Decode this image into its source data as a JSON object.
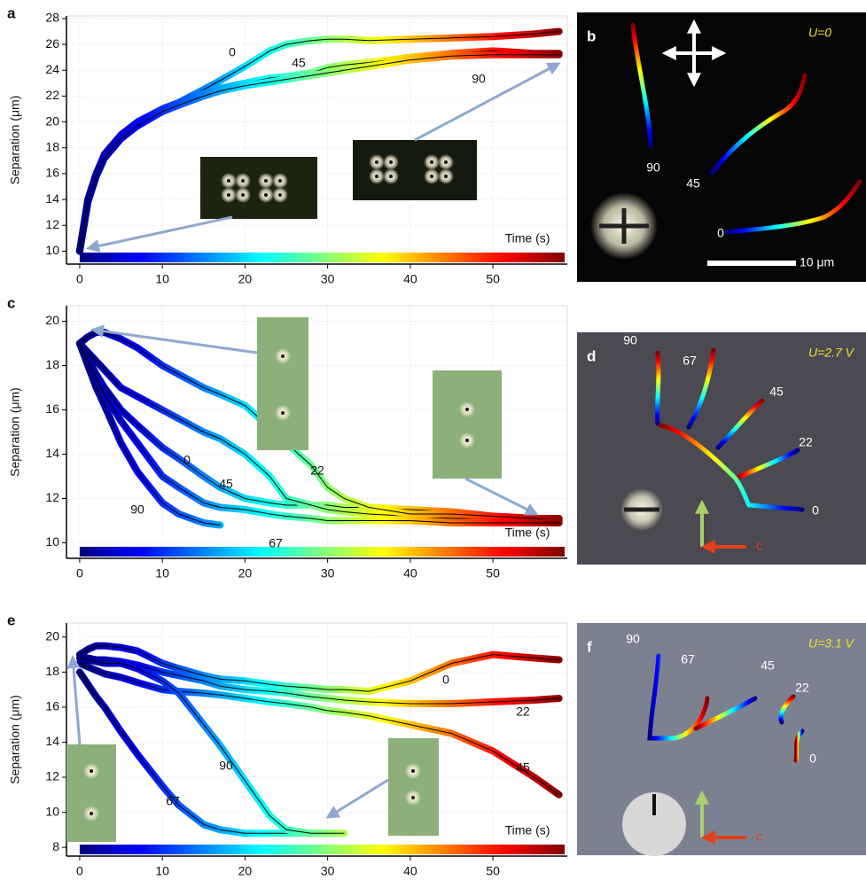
{
  "chart_data": [
    {
      "type": "line",
      "panel_label": "a",
      "y_label": "Separation (μm)",
      "x_label": "Time (s)",
      "colormap": "jet",
      "grid": true,
      "xlim": [
        -1.6,
        59
      ],
      "xticks": [
        0,
        10,
        20,
        30,
        40,
        50
      ],
      "ylim": [
        9,
        28.2
      ],
      "yticks": [
        10,
        12,
        14,
        16,
        18,
        20,
        22,
        24,
        26,
        28
      ],
      "x": [
        0,
        1,
        2,
        3,
        5,
        7,
        10,
        12,
        15,
        17,
        20,
        23,
        25,
        28,
        30,
        32,
        35,
        40,
        45,
        50,
        55,
        58
      ],
      "series": [
        {
          "name": "0",
          "values": [
            10,
            14,
            16,
            17.5,
            19,
            20,
            21,
            21.5,
            22.5,
            23.2,
            24.3,
            25.5,
            26,
            26.3,
            26.4,
            26.4,
            26.3,
            26.4,
            26.5,
            26.6,
            26.8,
            27
          ]
        },
        {
          "name": "45",
          "values": [
            10,
            14,
            16,
            17.3,
            18.8,
            19.8,
            21,
            21.5,
            22.2,
            22.6,
            23,
            23.4,
            23.5,
            23.8,
            24.2,
            24.4,
            24.6,
            25,
            25.3,
            25.5,
            25.3,
            25.3
          ]
        },
        {
          "name": "90",
          "values": [
            10,
            13.8,
            15.8,
            17.2,
            18.7,
            19.7,
            20.8,
            21.3,
            22,
            22.4,
            22.8,
            23.1,
            23.3,
            23.6,
            23.8,
            24,
            24.3,
            24.8,
            25.1,
            25.2,
            25.2,
            25.2
          ]
        }
      ]
    },
    {
      "type": "line",
      "panel_label": "c",
      "y_label": "Separation (μm)",
      "x_label": "Time (s)",
      "colormap": "jet",
      "grid": true,
      "xlim": [
        -1.6,
        59
      ],
      "xticks": [
        0,
        10,
        20,
        30,
        40,
        50
      ],
      "ylim": [
        9.3,
        20.7
      ],
      "yticks": [
        10,
        12,
        14,
        16,
        18,
        20
      ],
      "x": [
        0,
        1,
        2,
        3,
        5,
        7,
        10,
        12,
        15,
        17,
        20,
        23,
        25,
        28,
        30,
        32,
        35,
        40,
        45,
        50,
        55,
        58
      ],
      "series": [
        {
          "name": "0",
          "values": [
            19,
            18.3,
            17.6,
            17,
            16,
            15.3,
            14.3,
            13.8,
            13,
            12.5,
            12,
            11.8,
            11.7,
            11.7,
            11.7,
            11.6,
            11.6,
            11.5,
            11.4,
            11.2,
            11.1,
            11.1
          ]
        },
        {
          "name": "45",
          "values": [
            19,
            18.6,
            18.2,
            17.8,
            17,
            16.6,
            16,
            15.6,
            15,
            14.7,
            14,
            13,
            12,
            11.7,
            11.5,
            11.4,
            11.3,
            11.2,
            11.1,
            11.1,
            11,
            11
          ]
        },
        {
          "name": "22",
          "values": [
            19,
            19.3,
            19.5,
            19.5,
            19.2,
            18.8,
            18,
            17.6,
            17,
            16.7,
            16.2,
            15.2,
            14.5,
            13.5,
            12.5,
            12,
            11.6,
            11.3,
            11.3,
            11.2,
            11.1,
            11
          ]
        },
        {
          "name": "90",
          "values": [
            19,
            18,
            17,
            16.2,
            14.5,
            13.2,
            11.8,
            11.3,
            10.9,
            10.8,
            null,
            null,
            null,
            null,
            null,
            null,
            null,
            null,
            null,
            null,
            null,
            null
          ]
        },
        {
          "name": "67",
          "values": [
            19,
            18.2,
            17.4,
            16.7,
            15.5,
            14.5,
            13,
            12.5,
            11.8,
            11.6,
            11.5,
            11.3,
            11.2,
            11.1,
            11,
            11,
            11,
            11,
            10.9,
            10.9,
            10.9,
            10.9
          ]
        }
      ]
    },
    {
      "type": "line",
      "panel_label": "e",
      "y_label": "Separation (μm)",
      "x_label": "Time (s)",
      "colormap": "jet",
      "grid": true,
      "xlim": [
        -1.6,
        59
      ],
      "xticks": [
        0,
        10,
        20,
        30,
        40,
        50
      ],
      "ylim": [
        7.5,
        20.8
      ],
      "yticks": [
        8,
        10,
        12,
        14,
        16,
        18,
        20
      ],
      "x": [
        0,
        1,
        2,
        3,
        5,
        7,
        10,
        12,
        15,
        17,
        20,
        23,
        25,
        28,
        30,
        32,
        35,
        40,
        45,
        50,
        55,
        58
      ],
      "series": [
        {
          "name": "0",
          "values": [
            19,
            19.3,
            19.5,
            19.5,
            19.4,
            19.2,
            18.5,
            18.2,
            17.8,
            17.6,
            17.5,
            17.3,
            17.2,
            17.1,
            17,
            17,
            16.9,
            17.5,
            18.5,
            19,
            18.8,
            18.7
          ]
        },
        {
          "name": "22",
          "values": [
            18.8,
            18.8,
            18.7,
            18.7,
            18.6,
            18.4,
            18,
            17.8,
            17.5,
            17.2,
            17,
            16.9,
            16.8,
            16.6,
            16.5,
            16.4,
            16.3,
            16.2,
            16.2,
            16.3,
            16.4,
            16.5
          ]
        },
        {
          "name": "45",
          "values": [
            18.5,
            18.3,
            18.1,
            17.9,
            17.7,
            17.4,
            17,
            16.9,
            16.8,
            16.7,
            16.5,
            16.3,
            16.2,
            16,
            15.8,
            15.7,
            15.5,
            15,
            14.5,
            13.5,
            12,
            11
          ]
        },
        {
          "name": "67",
          "values": [
            18,
            17.3,
            16.6,
            16,
            14.6,
            13.3,
            11.5,
            10.4,
            9.3,
            9,
            8.8,
            8.8,
            8.8,
            8.8,
            8.8,
            null,
            null,
            null,
            null,
            null,
            null,
            null
          ]
        },
        {
          "name": "90",
          "values": [
            18.8,
            18.7,
            18.6,
            18.5,
            18.5,
            18.2,
            17.5,
            16.8,
            15,
            13.8,
            11.8,
            9.8,
            9,
            8.8,
            8.8,
            8.8,
            null,
            null,
            null,
            null,
            null,
            null
          ]
        }
      ]
    }
  ],
  "images": [
    {
      "panel_label": "b",
      "condition": "U=0",
      "annotations": [
        "90",
        "45",
        "0"
      ],
      "scale_bar": "10 μm"
    },
    {
      "panel_label": "d",
      "condition": "U=2.7 V",
      "annotations": [
        "90",
        "67",
        "45",
        "22",
        "0"
      ],
      "axis_label": "c"
    },
    {
      "panel_label": "f",
      "condition": "U=3.1 V",
      "annotations": [
        "90",
        "67",
        "45",
        "22",
        "0"
      ],
      "axis_label": "c"
    }
  ]
}
